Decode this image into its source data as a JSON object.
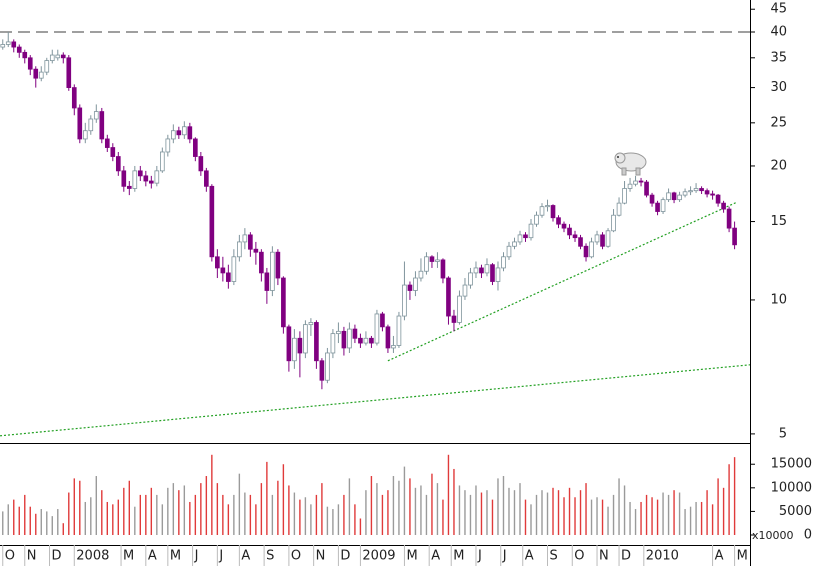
{
  "chart_data": {
    "type": "candlestick",
    "log_scale": true,
    "xlim": [
      -0.5,
      135.8
    ],
    "ylim": [
      4.77,
      47.2
    ],
    "yticks": [
      5,
      10,
      15,
      20,
      25,
      30,
      35,
      40,
      45
    ],
    "xticks": [
      {
        "value": 0,
        "label": "O"
      },
      {
        "value": 4,
        "label": "N"
      },
      {
        "value": 8.5,
        "label": "D"
      },
      {
        "value": 13,
        "label": "2008"
      },
      {
        "value": 21.5,
        "label": "M"
      },
      {
        "value": 26,
        "label": "A"
      },
      {
        "value": 30,
        "label": "M"
      },
      {
        "value": 34.5,
        "label": "J"
      },
      {
        "value": 39,
        "label": "J"
      },
      {
        "value": 43,
        "label": "A"
      },
      {
        "value": 47.5,
        "label": "S"
      },
      {
        "value": 52,
        "label": "O"
      },
      {
        "value": 56.5,
        "label": "N"
      },
      {
        "value": 61,
        "label": "D"
      },
      {
        "value": 65,
        "label": "2009"
      },
      {
        "value": 73,
        "label": "M"
      },
      {
        "value": 77.5,
        "label": "A"
      },
      {
        "value": 81.5,
        "label": "M"
      },
      {
        "value": 86,
        "label": "J"
      },
      {
        "value": 90.5,
        "label": "J"
      },
      {
        "value": 94.5,
        "label": "A"
      },
      {
        "value": 99,
        "label": "S"
      },
      {
        "value": 103.5,
        "label": "O"
      },
      {
        "value": 108,
        "label": "N"
      },
      {
        "value": 112,
        "label": "D"
      },
      {
        "value": 116.5,
        "label": "2010"
      },
      {
        "value": 129,
        "label": "A"
      },
      {
        "value": 133,
        "label": "M"
      }
    ],
    "colors": {
      "up_fill": "#ffffff",
      "up_stroke": "#7f949c",
      "down_fill": "#800080",
      "down_stroke": "#800080",
      "volume_up": "#9a9a9a",
      "volume_down": "#e03a3a",
      "trendline": "#22a022",
      "reference": "#666666"
    },
    "reference_line": 40,
    "trendlines": [
      {
        "x": [
          -0.5,
          135.8
        ],
        "y": [
          4.95,
          7.15
        ]
      },
      {
        "x": [
          70,
          133.5
        ],
        "y": [
          7.3,
          16.6
        ]
      }
    ],
    "open": [
      37,
      37.5,
      38,
      37,
      36,
      35,
      33,
      31.5,
      32.5,
      34.5,
      35,
      35.5,
      35,
      30,
      27,
      23,
      24,
      25.5,
      26.5,
      23,
      22,
      21,
      19.5,
      18,
      17.8,
      19.5,
      19,
      18.5,
      18.3,
      19.5,
      21.5,
      23,
      24,
      23.5,
      24.5,
      23,
      21,
      19.5,
      18,
      12.5,
      11.8,
      11.5,
      11,
      12.5,
      13.5,
      14,
      13,
      12.8,
      11.5,
      10.5,
      12.8,
      11.2,
      8.7,
      7.3,
      8.2,
      7.6,
      8.8,
      8.9,
      7.3,
      6.6,
      7.6,
      8.4,
      8.5,
      7.8,
      8.6,
      8.2,
      8,
      8.2,
      8,
      9.3,
      8.7,
      7.8,
      7.9,
      9.2,
      10.8,
      10.5,
      11.2,
      11.6,
      12.5,
      12.2,
      12.3,
      11.2,
      9.2,
      8.9,
      10.2,
      10.8,
      11.5,
      11.8,
      11.5,
      12,
      11,
      11.8,
      12.5,
      13.2,
      13.5,
      14,
      13.8,
      14.8,
      15.5,
      16.2,
      16.3,
      15.3,
      14.8,
      14.5,
      14,
      13.8,
      13.2,
      12.5,
      13.5,
      14,
      13.2,
      14.3,
      15.5,
      16.5,
      17.8,
      18.2,
      18.5,
      18.4,
      17.2,
      16.5,
      15.8,
      16.8,
      17.4,
      16.8,
      17.2,
      17.5,
      17.6,
      17.8,
      17.6,
      17.3,
      17.2,
      16.5,
      16,
      14.5
    ],
    "high": [
      38.5,
      40,
      38.5,
      37.5,
      36.5,
      35.5,
      33.5,
      33.5,
      35,
      36.5,
      36.5,
      36,
      35.5,
      30.5,
      27.5,
      25,
      26,
      27.5,
      27,
      23.5,
      22.5,
      21.5,
      20,
      18.5,
      20,
      20,
      19.5,
      19,
      20,
      22,
      23.5,
      24.8,
      24.5,
      25.2,
      25,
      23.2,
      21.5,
      19.8,
      18.2,
      13,
      12.5,
      12,
      13,
      14,
      14.5,
      14.2,
      13.5,
      13,
      11.8,
      13.2,
      13,
      11.3,
      8.8,
      8.6,
      8.5,
      9,
      9.1,
      9,
      7.4,
      7.8,
      8.6,
      8.9,
      8.7,
      8.9,
      8.8,
      8.4,
      8.5,
      8.3,
      9.5,
      9.4,
      8.8,
      8.3,
      9.4,
      12.2,
      11,
      11.6,
      12.4,
      12.8,
      12.6,
      12.8,
      12.4,
      11.3,
      9.5,
      10.5,
      11.2,
      11.8,
      12.2,
      12,
      12.4,
      12.1,
      12.2,
      12.8,
      13.5,
      13.8,
      14.3,
      14.2,
      15.2,
      15.8,
      16.5,
      16.8,
      16.4,
      15.5,
      15,
      14.8,
      14.3,
      14,
      13.4,
      13.8,
      14.3,
      14.2,
      14.5,
      16,
      17,
      18.5,
      18.8,
      19,
      18.8,
      18.6,
      17.4,
      16.7,
      17,
      17.8,
      17.5,
      17.5,
      17.8,
      18,
      18.3,
      18,
      17.8,
      17.6,
      17.3,
      16.7,
      16.2,
      15
    ],
    "low": [
      36.5,
      37,
      36,
      35,
      34,
      32,
      30,
      31,
      32,
      34,
      34.5,
      34,
      29.5,
      26,
      22.5,
      22.5,
      23.5,
      25,
      22.5,
      21.5,
      20.5,
      19,
      17.5,
      17.2,
      17.5,
      18.5,
      18,
      17.8,
      18,
      19.3,
      21,
      22.5,
      23,
      23,
      22.5,
      20.5,
      19,
      17.5,
      12.2,
      11.2,
      11,
      10.6,
      10.8,
      12.2,
      13,
      12.5,
      12,
      11,
      9.8,
      10.2,
      10.8,
      8.4,
      6.9,
      7,
      6.7,
      7.4,
      8.3,
      7,
      6.3,
      6.5,
      7.4,
      8,
      7.5,
      7.6,
      8,
      7.8,
      7.9,
      7.8,
      7.9,
      8.5,
      7.6,
      7.6,
      7.8,
      9,
      10,
      10.2,
      11,
      11.4,
      11.8,
      11.8,
      10.9,
      8.8,
      8.5,
      8.8,
      10,
      10.6,
      11.2,
      11.2,
      11.3,
      10.8,
      10.5,
      11.6,
      12.3,
      13,
      13.3,
      13.5,
      13.6,
      14.6,
      15.3,
      15.8,
      15,
      14.5,
      14.2,
      13.7,
      13.5,
      13,
      12.2,
      12.4,
      13.3,
      13,
      13.1,
      14.2,
      15.4,
      16.4,
      17.5,
      18,
      18,
      17,
      16.2,
      15.5,
      15.6,
      16.6,
      16.5,
      16.6,
      17,
      17.2,
      17.4,
      17.3,
      17,
      16.8,
      16.2,
      15.7,
      14.2,
      13
    ],
    "close": [
      37.5,
      38,
      37,
      36,
      35,
      33,
      31.5,
      32.5,
      34.5,
      35.5,
      35.5,
      35,
      30,
      27,
      23,
      24,
      25.5,
      26.5,
      23,
      22,
      21,
      19.5,
      18,
      17.8,
      19.5,
      19,
      18.5,
      18.3,
      19.5,
      21.5,
      23,
      24,
      23.5,
      24.5,
      23,
      21,
      19.5,
      18,
      12.5,
      11.8,
      11.5,
      11,
      12.5,
      13.5,
      14,
      13,
      12.8,
      11.5,
      10.5,
      12.8,
      11.2,
      8.7,
      7.3,
      8.2,
      7.6,
      8.8,
      8.9,
      7.3,
      6.6,
      7.6,
      8.4,
      8.5,
      7.8,
      8.6,
      8.2,
      8,
      8.2,
      8,
      9.3,
      8.7,
      7.8,
      7.9,
      9.2,
      10.8,
      10.5,
      11.2,
      11.6,
      12.5,
      12.2,
      12.3,
      11.2,
      9.2,
      8.9,
      10.2,
      10.8,
      11.5,
      11.8,
      11.5,
      12,
      11,
      11.8,
      12.5,
      13.2,
      13.5,
      14,
      13.8,
      14.8,
      15.5,
      16.2,
      16.3,
      15.3,
      14.8,
      14.5,
      14,
      13.8,
      13.2,
      12.5,
      13.5,
      14,
      13.2,
      14.3,
      15.5,
      16.5,
      17.8,
      18.2,
      18.5,
      18.4,
      17.2,
      16.5,
      15.8,
      16.8,
      17.4,
      16.8,
      17.2,
      17.5,
      17.6,
      17.8,
      17.6,
      17.3,
      17.2,
      16.5,
      16,
      14.5,
      13.3
    ],
    "volume": {
      "values": [
        5000,
        6500,
        7500,
        6000,
        8500,
        6000,
        4500,
        5500,
        5000,
        4000,
        5500,
        2500,
        9000,
        12000,
        11500,
        7000,
        8000,
        12500,
        9500,
        7000,
        6500,
        7500,
        10000,
        11500,
        6000,
        8500,
        8500,
        10000,
        8500,
        6500,
        10000,
        11000,
        9500,
        10500,
        7000,
        8500,
        11000,
        12500,
        17000,
        11000,
        8500,
        6500,
        8500,
        13000,
        9000,
        8500,
        6500,
        11000,
        15500,
        8500,
        11500,
        15000,
        10500,
        9000,
        7500,
        8000,
        6500,
        8500,
        11000,
        6000,
        5500,
        6500,
        8500,
        12000,
        6500,
        3500,
        9500,
        12500,
        11000,
        8500,
        9500,
        12500,
        11500,
        14500,
        12000,
        10000,
        10500,
        8500,
        13000,
        11000,
        7500,
        17000,
        14000,
        10500,
        9500,
        8500,
        10500,
        9000,
        9500,
        7500,
        12000,
        12500,
        10000,
        9500,
        11000,
        7500,
        6500,
        8500,
        9500,
        9000,
        10000,
        9500,
        8000,
        10000,
        8000,
        9500,
        11000,
        7500,
        8000,
        7500,
        6000,
        8500,
        12000,
        10500,
        7000,
        5500,
        7000,
        8500,
        8000,
        7500,
        9000,
        8500,
        9500,
        9000,
        5500,
        6000,
        7000,
        7000,
        9500,
        6500,
        12000,
        10000,
        15000,
        16500
      ],
      "ylim": [
        0,
        19500
      ],
      "yticks": [
        0,
        5000,
        10000,
        15000
      ],
      "unit_label": "x10000"
    }
  }
}
